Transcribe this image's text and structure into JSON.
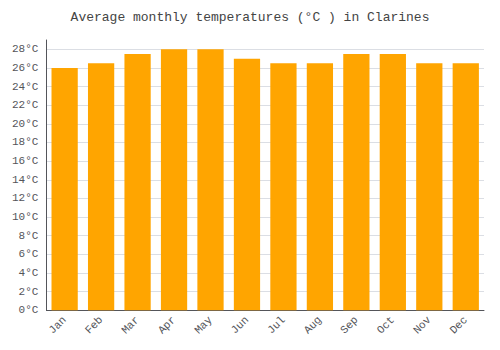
{
  "chart_data": {
    "type": "bar",
    "title": "Average monthly temperatures (°C ) in Clarines",
    "categories": [
      "Jan",
      "Feb",
      "Mar",
      "Apr",
      "May",
      "Jun",
      "Jul",
      "Aug",
      "Sep",
      "Oct",
      "Nov",
      "Dec"
    ],
    "values": [
      26.0,
      26.5,
      27.5,
      28.0,
      28.0,
      27.0,
      26.5,
      26.5,
      27.5,
      27.5,
      26.5,
      26.5
    ],
    "color": "#FFA500",
    "ylim": [
      0,
      29
    ],
    "yticks": [
      {
        "value": 0,
        "label": "0°C"
      },
      {
        "value": 2,
        "label": "2°C"
      },
      {
        "value": 4,
        "label": "4°C"
      },
      {
        "value": 6,
        "label": "6°C"
      },
      {
        "value": 8,
        "label": "8°C"
      },
      {
        "value": 10,
        "label": "10°C"
      },
      {
        "value": 12,
        "label": "12°C"
      },
      {
        "value": 14,
        "label": "14°C"
      },
      {
        "value": 16,
        "label": "16°C"
      },
      {
        "value": 18,
        "label": "18°C"
      },
      {
        "value": 20,
        "label": "20°C"
      },
      {
        "value": 22,
        "label": "22°C"
      },
      {
        "value": 24,
        "label": "24°C"
      },
      {
        "value": 26,
        "label": "26°C"
      },
      {
        "value": 28,
        "label": "28°C"
      }
    ],
    "grid": true
  }
}
